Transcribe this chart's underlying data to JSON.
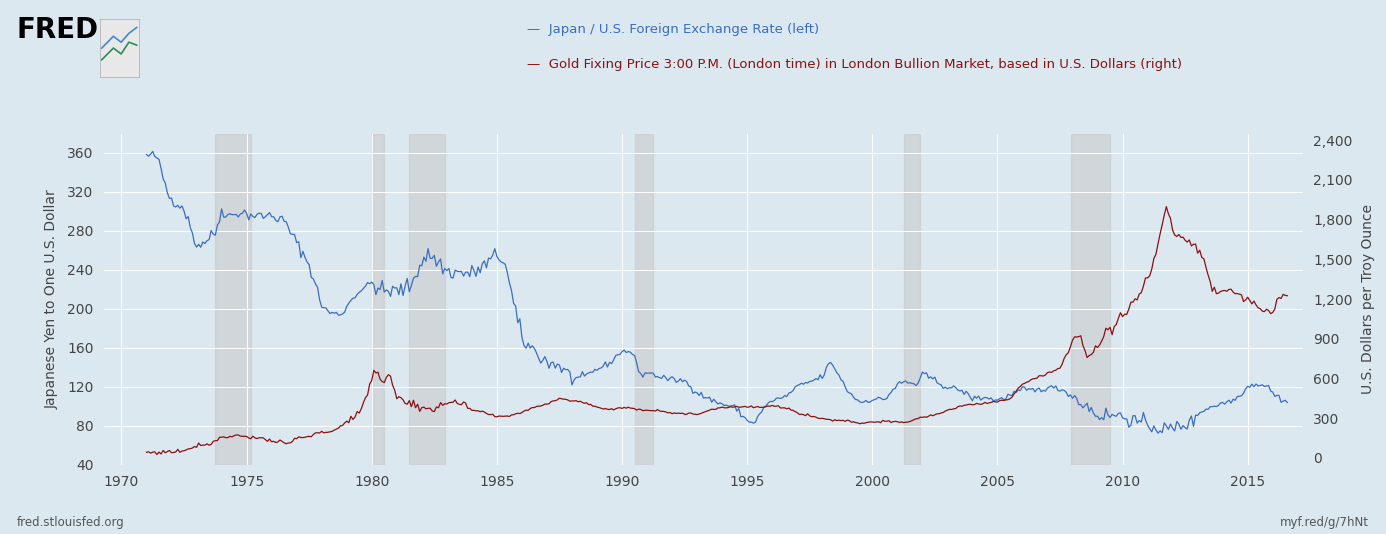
{
  "legend_blue": "Japan / U.S. Foreign Exchange Rate (left)",
  "legend_red": "Gold Fixing Price 3:00 P.M. (London time) in London Bullion Market, based in U.S. Dollars (right)",
  "ylabel_left": "Japanese Yen to One U.S. Dollar",
  "ylabel_right": "U.S. Dollars per Troy Ounce",
  "footer_left": "fred.stlouisfed.org",
  "footer_right": "myf.red/g/7hNt",
  "bg_color": "#dce8f0",
  "plot_bg_color": "#dce8f0",
  "blue_color": "#3a6ebc",
  "red_color": "#8b1010",
  "recession_color": "#c8c8c8",
  "recession_alpha": 0.55,
  "ylim_left": [
    40,
    380
  ],
  "ylim_right": [
    -50,
    2450
  ],
  "yticks_left": [
    40,
    80,
    120,
    160,
    200,
    240,
    280,
    320,
    360
  ],
  "yticks_right": [
    0,
    300,
    600,
    900,
    1200,
    1500,
    1800,
    2100,
    2400
  ],
  "xticks": [
    1970,
    1975,
    1980,
    1985,
    1990,
    1995,
    2000,
    2005,
    2010,
    2015
  ],
  "xlim": [
    1969.3,
    2017.2
  ],
  "recession_bands": [
    [
      1973.75,
      1975.17
    ],
    [
      1980.0,
      1980.5
    ],
    [
      1981.5,
      1982.92
    ],
    [
      1990.5,
      1991.25
    ],
    [
      2001.25,
      2001.92
    ],
    [
      2007.92,
      2009.5
    ]
  ]
}
